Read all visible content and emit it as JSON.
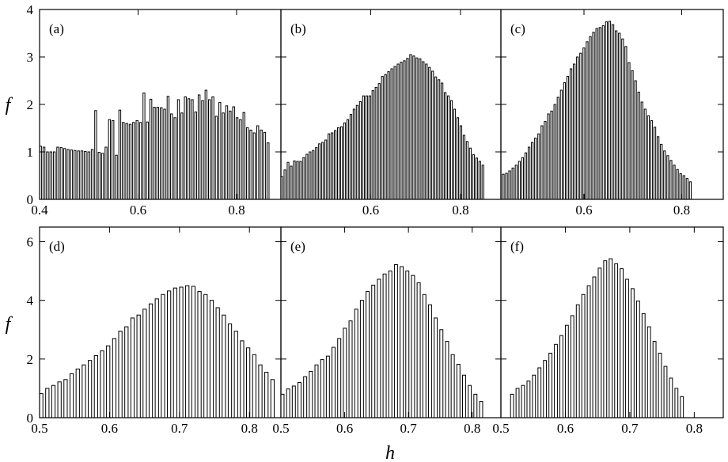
{
  "figure": {
    "xlabel": "h",
    "ylabel_top": "f",
    "ylabel_bottom": "f"
  },
  "chart_data": [
    {
      "type": "bar",
      "label": "(a)",
      "xlim": [
        0.4,
        0.89
      ],
      "ylim": [
        0,
        4
      ],
      "xticks": [
        0.4,
        0.6,
        0.8
      ],
      "xtick_labels": [
        "0.4",
        "0.6",
        "0.8"
      ],
      "yticks": [
        0,
        1,
        2,
        3,
        4
      ],
      "ytick_labels": [
        "0",
        "1",
        "2",
        "3",
        "4"
      ],
      "bin_start": 0.4,
      "bin_width": 0.007,
      "values": [
        1.12,
        1.1,
        1.0,
        1.0,
        1.0,
        1.1,
        1.09,
        1.07,
        1.05,
        1.04,
        1.03,
        1.02,
        1.02,
        1.01,
        1.0,
        1.05,
        1.87,
        0.99,
        0.97,
        1.1,
        1.68,
        1.66,
        0.93,
        1.88,
        1.62,
        1.6,
        1.58,
        1.62,
        1.66,
        1.62,
        2.24,
        1.63,
        2.11,
        1.94,
        1.94,
        1.93,
        1.9,
        2.17,
        1.8,
        1.72,
        2.1,
        1.82,
        2.16,
        2.12,
        2.1,
        1.84,
        2.2,
        2.08,
        2.3,
        2.1,
        2.16,
        1.75,
        2.04,
        1.82,
        1.97,
        1.86,
        1.95,
        1.72,
        1.68,
        1.83,
        1.51,
        1.46,
        1.4,
        1.55,
        1.46,
        1.41,
        1.19
      ]
    },
    {
      "type": "bar",
      "label": "(b)",
      "xlim": [
        0.4,
        0.89
      ],
      "ylim": [
        0,
        4
      ],
      "xticks": [
        0.6,
        0.8
      ],
      "xtick_labels": [
        "0.6",
        "0.8"
      ],
      "yticks": [
        0,
        1,
        2,
        3,
        4
      ],
      "ytick_labels": [],
      "bin_start": 0.4,
      "bin_width": 0.007,
      "values": [
        0.48,
        0.62,
        0.78,
        0.7,
        0.81,
        0.8,
        0.8,
        0.88,
        0.95,
        1.0,
        1.03,
        1.09,
        1.17,
        1.2,
        1.25,
        1.38,
        1.4,
        1.45,
        1.51,
        1.53,
        1.61,
        1.68,
        1.79,
        1.9,
        1.98,
        2.06,
        2.18,
        2.18,
        2.18,
        2.29,
        2.36,
        2.44,
        2.59,
        2.63,
        2.69,
        2.75,
        2.8,
        2.85,
        2.89,
        2.92,
        2.97,
        3.05,
        3.02,
        2.98,
        2.96,
        2.9,
        2.85,
        2.78,
        2.7,
        2.58,
        2.52,
        2.45,
        2.25,
        2.18,
        2.08,
        1.9,
        1.72,
        1.55,
        1.35,
        1.22,
        1.08,
        0.94,
        0.87,
        0.8,
        0.72
      ]
    },
    {
      "type": "bar",
      "label": "(c)",
      "xlim": [
        0.43,
        0.885
      ],
      "ylim": [
        0,
        4
      ],
      "xticks": [
        0.6,
        0.8
      ],
      "xtick_labels": [
        "0.6",
        "0.8"
      ],
      "yticks": [
        0,
        1,
        2,
        3,
        4
      ],
      "ytick_labels": [],
      "bin_start": 0.433,
      "bin_width": 0.0066,
      "values": [
        0.53,
        0.55,
        0.6,
        0.66,
        0.72,
        0.8,
        0.88,
        0.98,
        1.1,
        1.2,
        1.29,
        1.38,
        1.55,
        1.64,
        1.8,
        1.86,
        2.0,
        2.15,
        2.3,
        2.46,
        2.59,
        2.75,
        2.85,
        3.0,
        3.08,
        3.19,
        3.32,
        3.43,
        3.52,
        3.6,
        3.62,
        3.66,
        3.74,
        3.75,
        3.68,
        3.55,
        3.5,
        3.38,
        3.22,
        2.88,
        2.71,
        2.5,
        2.26,
        2.05,
        1.9,
        1.76,
        1.66,
        1.52,
        1.32,
        1.16,
        1.02,
        0.92,
        0.82,
        0.72,
        0.63,
        0.54,
        0.5,
        0.44,
        0.37
      ]
    },
    {
      "type": "bar",
      "label": "(d)",
      "xlim": [
        0.5,
        0.845
      ],
      "ylim": [
        0,
        6.5
      ],
      "xticks": [
        0.5,
        0.6,
        0.7,
        0.8
      ],
      "xtick_labels": [
        "0.5",
        "0.6",
        "0.7",
        "0.8"
      ],
      "yticks": [
        0,
        2,
        4,
        6
      ],
      "ytick_labels": [
        "0",
        "2",
        "4",
        "6"
      ],
      "bin_start": 0.5,
      "bin_width": 0.0087,
      "values": [
        0.82,
        1.0,
        1.1,
        1.22,
        1.3,
        1.5,
        1.66,
        1.8,
        1.95,
        2.12,
        2.28,
        2.45,
        2.7,
        2.95,
        3.1,
        3.4,
        3.5,
        3.7,
        3.88,
        4.05,
        4.2,
        4.32,
        4.42,
        4.45,
        4.5,
        4.48,
        4.3,
        4.2,
        4.0,
        3.75,
        3.5,
        3.2,
        2.95,
        2.62,
        2.38,
        2.15,
        1.8,
        1.55,
        1.3,
        1.05,
        0.8,
        0.6
      ]
    },
    {
      "type": "bar",
      "label": "(e)",
      "xlim": [
        0.5,
        0.845
      ],
      "ylim": [
        0,
        6.5
      ],
      "xticks": [
        0.5,
        0.6,
        0.7,
        0.8
      ],
      "xtick_labels": [
        "0.5",
        "0.6",
        "0.7",
        "0.8"
      ],
      "yticks": [
        0,
        2,
        4,
        6
      ],
      "ytick_labels": [],
      "bin_start": 0.5,
      "bin_width": 0.0089,
      "values": [
        0.8,
        0.98,
        1.08,
        1.2,
        1.4,
        1.58,
        1.8,
        1.98,
        2.1,
        2.4,
        2.7,
        3.05,
        3.3,
        3.7,
        4.0,
        4.3,
        4.52,
        4.72,
        4.9,
        5.0,
        5.22,
        5.15,
        5.0,
        4.85,
        4.6,
        4.2,
        3.85,
        3.4,
        3.0,
        2.6,
        2.15,
        1.82,
        1.45,
        1.1,
        0.8,
        0.55
      ]
    },
    {
      "type": "bar",
      "label": "(f)",
      "xlim": [
        0.5,
        0.845
      ],
      "ylim": [
        0,
        6.5
      ],
      "xticks": [
        0.5,
        0.6,
        0.7,
        0.8
      ],
      "xtick_labels": [
        "0.5",
        "0.6",
        "0.7",
        "0.8"
      ],
      "yticks": [
        0,
        2,
        4,
        6
      ],
      "ytick_labels": [],
      "bin_start": 0.515,
      "bin_width": 0.0085,
      "values": [
        0.8,
        1.0,
        1.1,
        1.25,
        1.45,
        1.7,
        1.95,
        2.2,
        2.5,
        2.8,
        3.15,
        3.48,
        3.85,
        4.2,
        4.5,
        4.8,
        5.1,
        5.35,
        5.42,
        5.25,
        5.08,
        4.72,
        4.4,
        3.98,
        3.55,
        3.1,
        2.6,
        2.2,
        1.75,
        1.35,
        1.0,
        0.72
      ]
    }
  ]
}
